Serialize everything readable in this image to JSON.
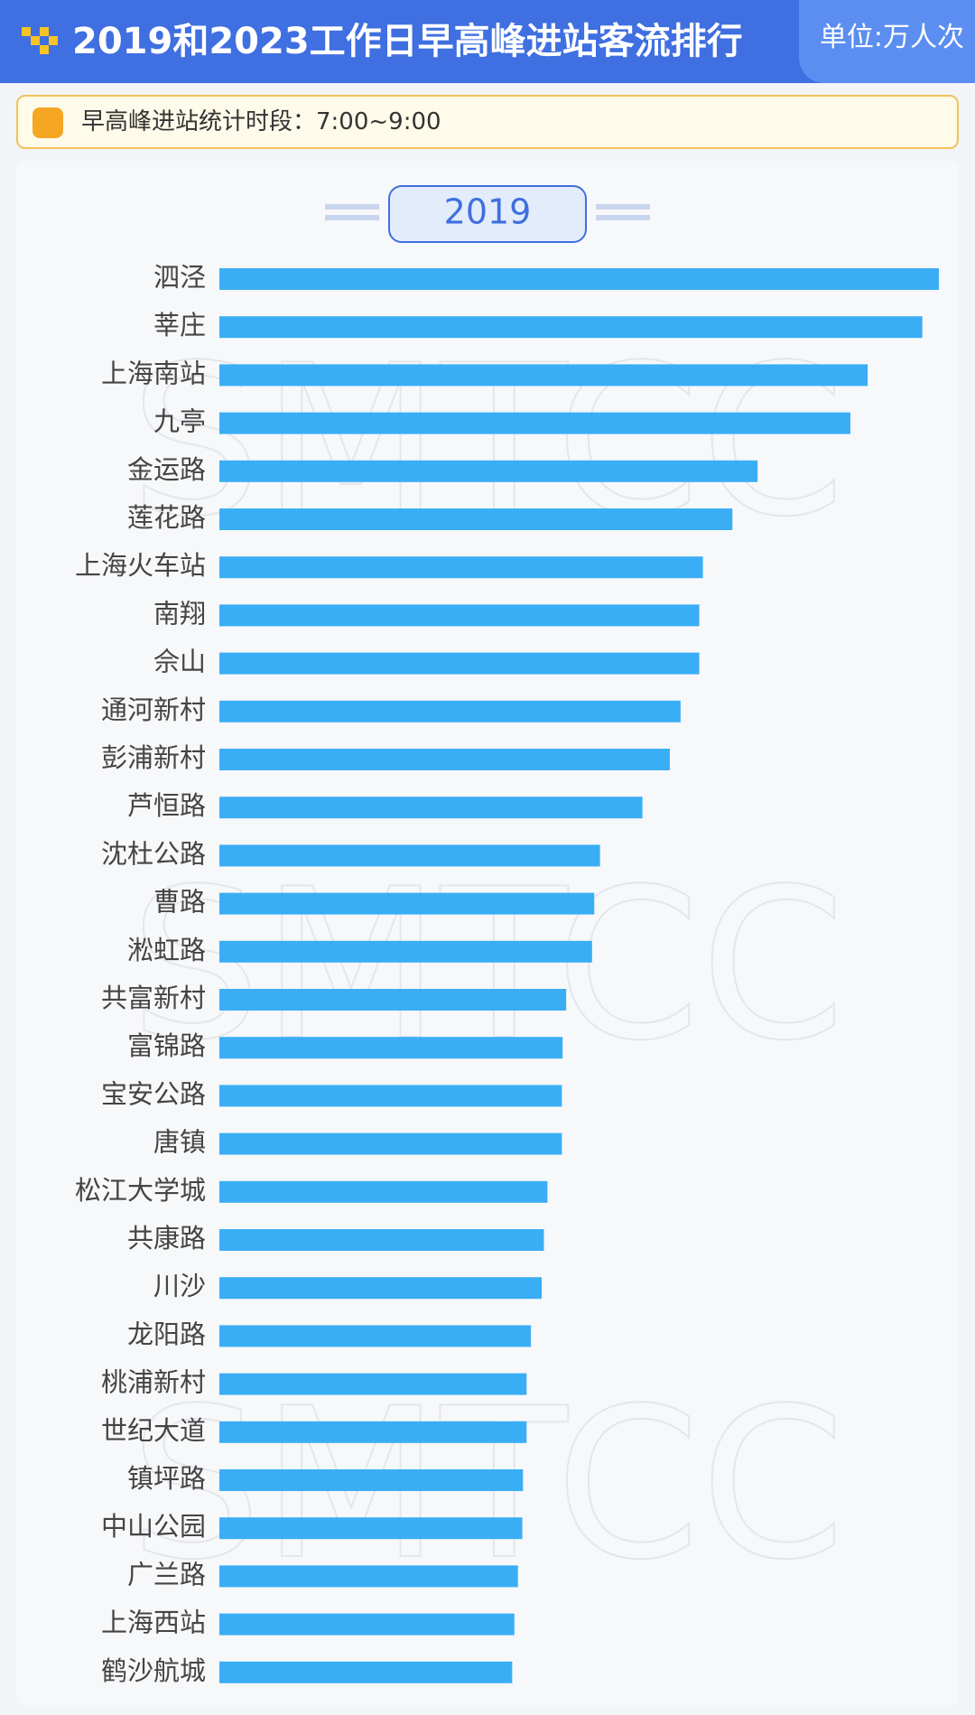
{
  "header": {
    "title": "2019和2023工作日早高峰进站客流排行",
    "unit": "单位:万人次"
  },
  "note": "早高峰进站统计时段：7:00~9:00",
  "watermark": "SMTCC",
  "chart_data": {
    "type": "bar",
    "orientation": "horizontal",
    "title": "2019",
    "categories": [
      "泗泾",
      "莘庄",
      "上海南站",
      "九亭",
      "金运路",
      "莲花路",
      "上海火车站",
      "南翔",
      "佘山",
      "通河新村",
      "彭浦新村",
      "芦恒路",
      "沈杜公路",
      "曹路",
      "淞虹路",
      "共富新村",
      "富锦路",
      "宝安公路",
      "唐镇",
      "松江大学城",
      "共康路",
      "川沙",
      "龙阳路",
      "桃浦新村",
      "世纪大道",
      "镇坪路",
      "中山公园",
      "广兰路",
      "上海西站",
      "鹤沙航城"
    ],
    "values": [
      100,
      97.7,
      90.1,
      87.7,
      74.8,
      71.3,
      67.2,
      66.7,
      66.7,
      64.1,
      62.6,
      58.8,
      52.9,
      52.1,
      51.8,
      48.2,
      47.7,
      47.6,
      47.6,
      45.6,
      45.1,
      44.8,
      43.3,
      42.7,
      42.7,
      42.2,
      42.1,
      41.5,
      41.0,
      40.7
    ],
    "color": "#3aaef5",
    "xlim": [
      0,
      100
    ]
  }
}
